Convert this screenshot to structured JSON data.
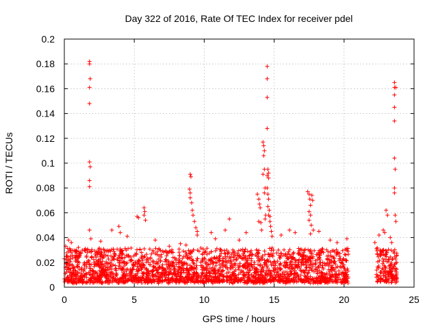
{
  "chart_data": {
    "type": "scatter",
    "title": "Day 322 of 2016, Rate Of TEC Index for receiver pdel",
    "xlabel": "GPS time / hours",
    "ylabel": "ROTI / TECUs",
    "xlim": [
      0,
      25
    ],
    "ylim": [
      0,
      0.2
    ],
    "xticks": [
      0,
      5,
      10,
      15,
      20,
      25
    ],
    "yticks": [
      0,
      0.02,
      0.04,
      0.06,
      0.08,
      0.1,
      0.12,
      0.14,
      0.16,
      0.18,
      0.2
    ],
    "xtick_labels": [
      "0",
      "5",
      "10",
      "15",
      "20",
      "25"
    ],
    "ytick_labels": [
      "0",
      "0.02",
      "0.04",
      "0.06",
      "0.08",
      "0.1",
      "0.12",
      "0.14",
      "0.16",
      "0.18",
      "0.2"
    ],
    "grid": true,
    "marker": "+",
    "color": "#ff0000",
    "series": [
      {
        "name": "ROTI",
        "points": [
          [
            0.1,
            0.033
          ],
          [
            0.3,
            0.038
          ],
          [
            0.5,
            0.036
          ],
          [
            1.0,
            0.032
          ],
          [
            1.5,
            0.031
          ],
          [
            1.8,
            0.182
          ],
          [
            1.8,
            0.18
          ],
          [
            1.85,
            0.168
          ],
          [
            1.8,
            0.161
          ],
          [
            1.8,
            0.148
          ],
          [
            1.8,
            0.101
          ],
          [
            1.85,
            0.097
          ],
          [
            1.8,
            0.086
          ],
          [
            1.8,
            0.081
          ],
          [
            1.8,
            0.046
          ],
          [
            1.9,
            0.039
          ],
          [
            2.6,
            0.037
          ],
          [
            3.4,
            0.046
          ],
          [
            3.9,
            0.049
          ],
          [
            4.0,
            0.044
          ],
          [
            4.5,
            0.041
          ],
          [
            5.2,
            0.057
          ],
          [
            5.3,
            0.056
          ],
          [
            5.7,
            0.064
          ],
          [
            5.75,
            0.061
          ],
          [
            5.7,
            0.058
          ],
          [
            5.8,
            0.054
          ],
          [
            6.5,
            0.038
          ],
          [
            7.5,
            0.033
          ],
          [
            8.3,
            0.035
          ],
          [
            8.7,
            0.034
          ],
          [
            9.0,
            0.091
          ],
          [
            9.05,
            0.089
          ],
          [
            8.95,
            0.079
          ],
          [
            9.0,
            0.076
          ],
          [
            9.0,
            0.072
          ],
          [
            9.1,
            0.068
          ],
          [
            9.15,
            0.062
          ],
          [
            9.2,
            0.058
          ],
          [
            9.3,
            0.053
          ],
          [
            9.4,
            0.048
          ],
          [
            9.5,
            0.045
          ],
          [
            9.5,
            0.042
          ],
          [
            10.5,
            0.044
          ],
          [
            10.8,
            0.039
          ],
          [
            11.5,
            0.046
          ],
          [
            11.8,
            0.055
          ],
          [
            12.5,
            0.038
          ],
          [
            13.0,
            0.044
          ],
          [
            13.8,
            0.075
          ],
          [
            13.9,
            0.071
          ],
          [
            13.95,
            0.067
          ],
          [
            14.0,
            0.064
          ],
          [
            13.9,
            0.053
          ],
          [
            14.05,
            0.052
          ],
          [
            14.1,
            0.046
          ],
          [
            14.2,
            0.117
          ],
          [
            14.25,
            0.114
          ],
          [
            14.3,
            0.11
          ],
          [
            14.25,
            0.106
          ],
          [
            14.3,
            0.095
          ],
          [
            14.2,
            0.091
          ],
          [
            14.35,
            0.08
          ],
          [
            14.3,
            0.076
          ],
          [
            14.4,
            0.058
          ],
          [
            14.35,
            0.055
          ],
          [
            14.5,
            0.178
          ],
          [
            14.5,
            0.168
          ],
          [
            14.5,
            0.153
          ],
          [
            14.5,
            0.128
          ],
          [
            14.55,
            0.095
          ],
          [
            14.5,
            0.09
          ],
          [
            14.6,
            0.092
          ],
          [
            14.6,
            0.088
          ],
          [
            14.5,
            0.08
          ],
          [
            14.55,
            0.075
          ],
          [
            14.6,
            0.071
          ],
          [
            14.55,
            0.065
          ],
          [
            14.65,
            0.062
          ],
          [
            14.6,
            0.058
          ],
          [
            14.7,
            0.057
          ],
          [
            14.7,
            0.053
          ],
          [
            14.75,
            0.049
          ],
          [
            14.8,
            0.045
          ],
          [
            14.85,
            0.041
          ],
          [
            15.5,
            0.042
          ],
          [
            16.1,
            0.046
          ],
          [
            16.5,
            0.044
          ],
          [
            17.4,
            0.077
          ],
          [
            17.5,
            0.075
          ],
          [
            17.55,
            0.071
          ],
          [
            17.7,
            0.074
          ],
          [
            17.75,
            0.07
          ],
          [
            17.6,
            0.066
          ],
          [
            17.5,
            0.061
          ],
          [
            17.6,
            0.058
          ],
          [
            17.5,
            0.054
          ],
          [
            17.65,
            0.05
          ],
          [
            17.8,
            0.046
          ],
          [
            17.6,
            0.043
          ],
          [
            18.2,
            0.045
          ],
          [
            19.0,
            0.038
          ],
          [
            19.5,
            0.036
          ],
          [
            20.2,
            0.039
          ],
          [
            22.2,
            0.036
          ],
          [
            22.5,
            0.042
          ],
          [
            22.8,
            0.046
          ],
          [
            22.9,
            0.044
          ],
          [
            23.0,
            0.062
          ],
          [
            23.1,
            0.058
          ],
          [
            23.3,
            0.04
          ],
          [
            23.4,
            0.036
          ],
          [
            23.6,
            0.165
          ],
          [
            23.6,
            0.161
          ],
          [
            23.7,
            0.161
          ],
          [
            23.6,
            0.155
          ],
          [
            23.6,
            0.145
          ],
          [
            23.6,
            0.134
          ],
          [
            23.6,
            0.104
          ],
          [
            23.65,
            0.095
          ],
          [
            23.6,
            0.08
          ],
          [
            23.6,
            0.076
          ],
          [
            23.65,
            0.058
          ],
          [
            23.7,
            0.053
          ]
        ],
        "dense_band": {
          "segments": [
            [
              0,
              20.3
            ],
            [
              22.3,
              23.8
            ]
          ],
          "typical_min": 0.003,
          "typical_max": 0.03
        }
      }
    ]
  }
}
